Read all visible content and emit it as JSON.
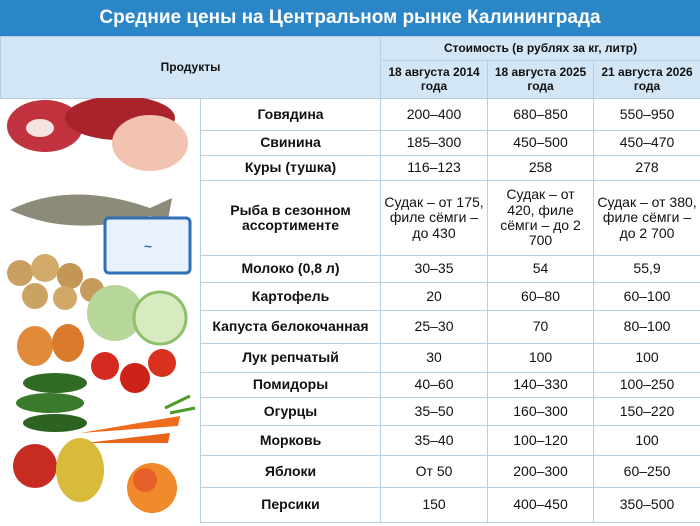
{
  "header": {
    "title": "Средние цены на Центральном рынке Калининграда"
  },
  "table": {
    "product_header": "Продукты",
    "price_header": "Стоимость (в рублях за кг, литр)",
    "dates": [
      "18 августа 2014 года",
      "18 августа 2025 года",
      "21 августа 2026 года"
    ],
    "rows": [
      [
        "Говядина",
        "200–400",
        "680–850",
        "550–950"
      ],
      [
        "Свинина",
        "185–300",
        "450–500",
        "450–470"
      ],
      [
        "Куры (тушка)",
        "116–123",
        "258",
        "278"
      ],
      [
        "Рыба в сезонном ассортименте",
        "Судак – от 175, филе сёмги – до 430",
        "Судак – от 420, филе сёмги – до 2 700",
        "Судак – от 380, филе сёмги – до 2 700"
      ],
      [
        "Молоко (0,8 л)",
        "30–35",
        "54",
        "55,9"
      ],
      [
        "Картофель",
        "20",
        "60–80",
        "60–100"
      ],
      [
        "Капуста белокочанная",
        "25–30",
        "70",
        "80–100"
      ],
      [
        "Лук репчатый",
        "30",
        "100",
        "100"
      ],
      [
        "Помидоры",
        "40–60",
        "140–330",
        "100–250"
      ],
      [
        "Огурцы",
        "35–50",
        "160–300",
        "150–220"
      ],
      [
        "Морковь",
        "35–40",
        "100–120",
        "100"
      ],
      [
        "Яблоки",
        "От 50",
        "200–300",
        "60–250"
      ],
      [
        "Персики",
        "150",
        "400–450",
        "350–500"
      ]
    ]
  }
}
